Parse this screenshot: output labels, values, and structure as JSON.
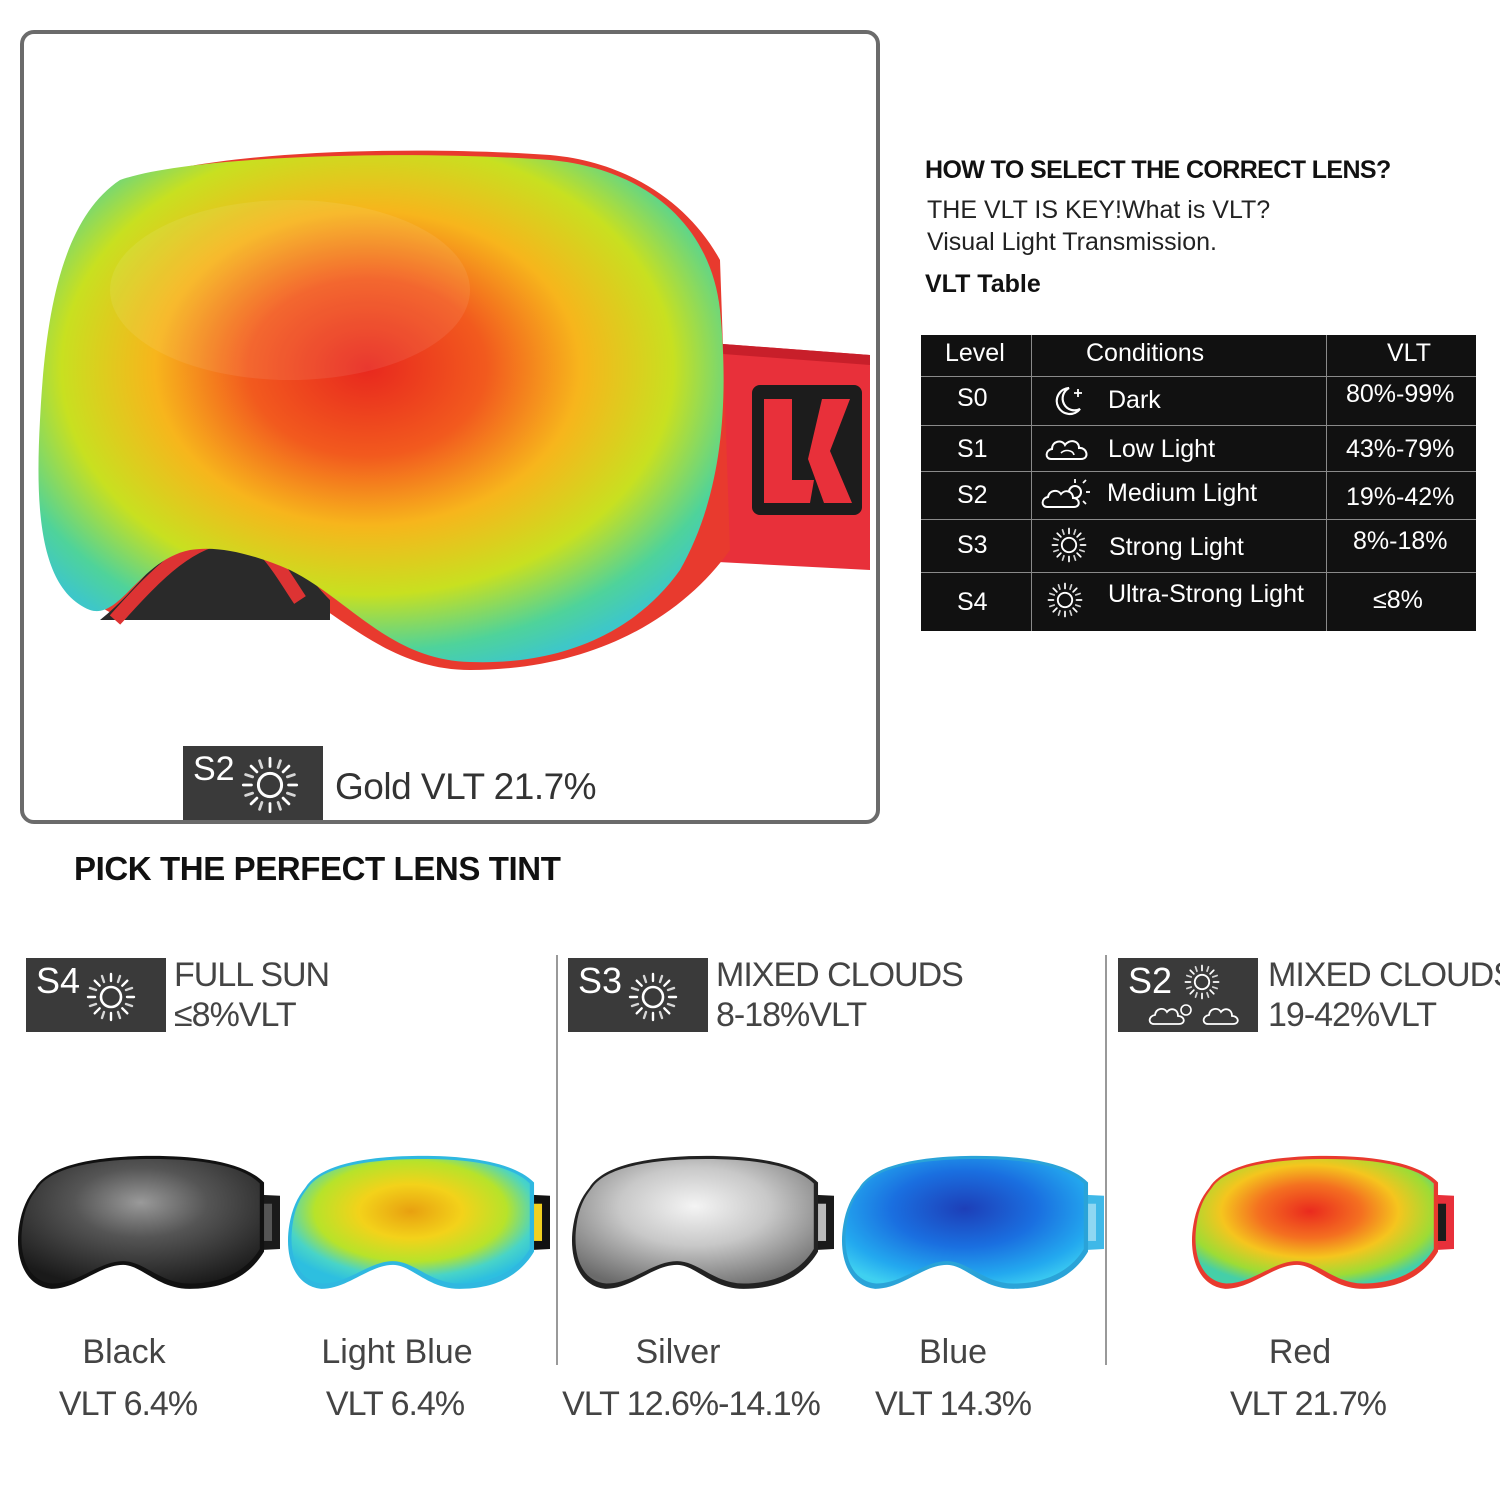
{
  "hero": {
    "badge_level": "S2",
    "caption": "Gold VLT 21.7%",
    "strap_logo": "LK"
  },
  "guide": {
    "title": "HOW TO SELECT THE CORRECT LENS?",
    "line1": "THE VLT IS KEY!What is VLT?",
    "line2": "Visual Light Transmission.",
    "table_title": "VLT Table"
  },
  "vlt_table": {
    "headers": [
      "Level",
      "Conditions",
      "VLT"
    ],
    "rows": [
      {
        "level": "S0",
        "icon": "moon-icon",
        "condition": "Dark",
        "vlt": "80%-99%"
      },
      {
        "level": "S1",
        "icon": "cloud-icon",
        "condition": "Low Light",
        "vlt": "43%-79%"
      },
      {
        "level": "S2",
        "icon": "cloud-sun-icon",
        "condition": "Medium Light",
        "vlt": "19%-42%"
      },
      {
        "level": "S3",
        "icon": "sun-icon",
        "condition": "Strong Light",
        "vlt": "8%-18%"
      },
      {
        "level": "S4",
        "icon": "sun-icon",
        "condition": "Ultra-Strong Light",
        "vlt": "≤8%"
      }
    ]
  },
  "pick_title": "PICK THE PERFECT LENS TINT",
  "groups": [
    {
      "level": "S4",
      "title": "FULL SUN",
      "sub": "≤8%VLT"
    },
    {
      "level": "S3",
      "title": "MIXED CLOUDS",
      "sub": "8-18%VLT"
    },
    {
      "level": "S2",
      "title": "MIXED CLOUDS",
      "sub": "19-42%VLT"
    }
  ],
  "products": [
    {
      "name": "Black",
      "vlt": "VLT 6.4%"
    },
    {
      "name": "Light Blue",
      "vlt": "VLT 6.4%"
    },
    {
      "name": "Silver",
      "vlt": "VLT 12.6%-14.1%"
    },
    {
      "name": "Blue",
      "vlt": "VLT 14.3%"
    },
    {
      "name": "Red",
      "vlt": "VLT 21.7%"
    }
  ],
  "colors": {
    "badge_bg": "#3a3a3a",
    "table_bg": "#111111",
    "red_strap": "#e8303a"
  }
}
